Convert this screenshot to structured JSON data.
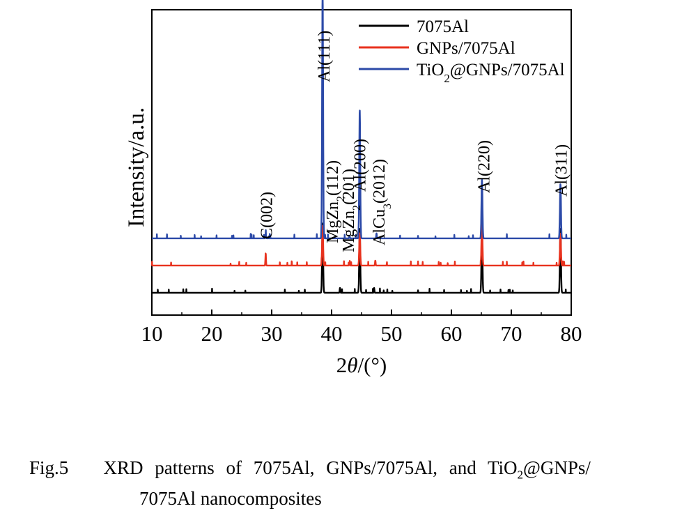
{
  "chart_data": {
    "type": "line",
    "ylabel": "Intensity/a.u.",
    "xlabel_prefix": "2",
    "xlabel_theta": "θ",
    "xlabel_suffix": "/(°)",
    "xlim": [
      10,
      80
    ],
    "xticks": [
      "10",
      "20",
      "30",
      "40",
      "50",
      "60",
      "70",
      "80"
    ],
    "legend": {
      "position": "top-right",
      "entries": [
        {
          "parts": [
            {
              "t": "7075Al"
            }
          ],
          "color": "#000000"
        },
        {
          "parts": [
            {
              "t": "GNPs/7075Al"
            }
          ],
          "color": "#e8321e"
        },
        {
          "parts": [
            {
              "t": "TiO"
            },
            {
              "t": "2",
              "sub": true
            },
            {
              "t": "@GNPs/7075Al"
            }
          ],
          "color": "#2c4aa8"
        }
      ]
    },
    "series": [
      {
        "name": "7075Al",
        "color": "#000000",
        "baseline": 0.0,
        "peaks": [
          [
            38.5,
            0.28
          ],
          [
            44.7,
            0.26
          ],
          [
            65.1,
            0.24
          ],
          [
            78.2,
            0.26
          ],
          [
            41.4,
            0.02
          ],
          [
            47.1,
            0.02
          ]
        ]
      },
      {
        "name": "GNPs/7075Al",
        "color": "#e8321e",
        "baseline": 0.11,
        "peaks": [
          [
            29.0,
            0.05
          ],
          [
            38.5,
            0.16
          ],
          [
            44.7,
            0.13
          ],
          [
            65.1,
            0.17
          ],
          [
            78.2,
            0.13
          ],
          [
            47.3,
            0.02
          ],
          [
            43.0,
            0.01
          ]
        ]
      },
      {
        "name": "TiO2@GNPs/7075Al",
        "color": "#2c4aa8",
        "baseline": 0.22,
        "peaks": [
          [
            29.0,
            0.02
          ],
          [
            38.5,
            1.0
          ],
          [
            44.7,
            0.52
          ],
          [
            65.1,
            0.24
          ],
          [
            78.2,
            0.22
          ],
          [
            47.5,
            0.02
          ],
          [
            43.0,
            0.01
          ]
        ]
      }
    ],
    "annotations": [
      {
        "x": 29.0,
        "parts": [
          {
            "t": "C(002)"
          }
        ]
      },
      {
        "x": 38.6,
        "parts": [
          {
            "t": "Al(111)"
          }
        ]
      },
      {
        "x": 40.0,
        "parts": [
          {
            "t": "MgZn"
          },
          {
            "t": "2",
            "sub": true
          },
          {
            "t": "(112)"
          }
        ]
      },
      {
        "x": 42.7,
        "parts": [
          {
            "t": "MgZn"
          },
          {
            "t": "2",
            "sub": true
          },
          {
            "t": "(201)"
          }
        ]
      },
      {
        "x": 44.6,
        "parts": [
          {
            "t": "Al(200)"
          }
        ]
      },
      {
        "x": 47.8,
        "parts": [
          {
            "t": "AlCu"
          },
          {
            "t": "3",
            "sub": true
          },
          {
            "t": "(2012)"
          }
        ]
      },
      {
        "x": 65.3,
        "parts": [
          {
            "t": "Al(220)"
          }
        ]
      },
      {
        "x": 78.2,
        "parts": [
          {
            "t": "Al(311)"
          }
        ]
      }
    ]
  },
  "caption": {
    "line1_parts": [
      {
        "t": "Fig.5   XRD patterns of 7075Al, GNPs/7075Al, and TiO"
      },
      {
        "t": "2",
        "sub": true
      },
      {
        "t": "@GNPs/"
      }
    ],
    "line2": "7075Al nanocomposites"
  }
}
